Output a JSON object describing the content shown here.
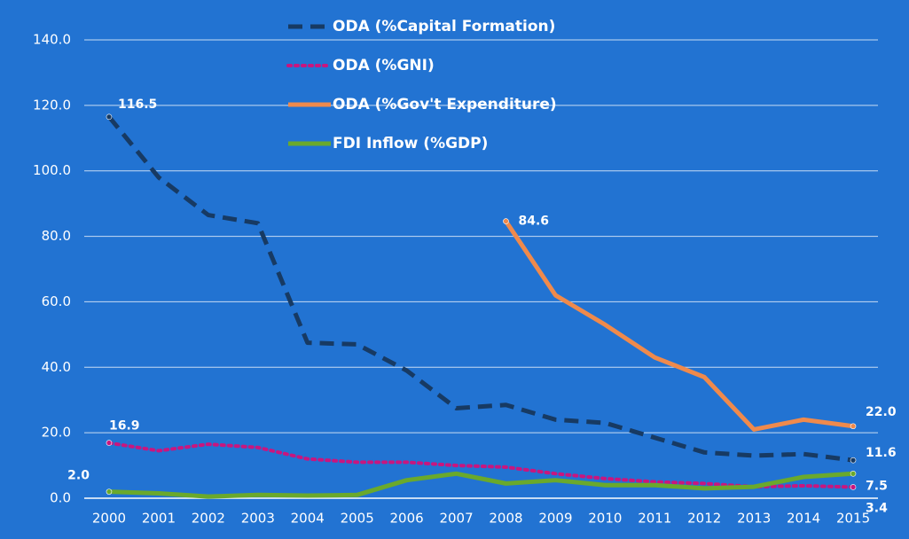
{
  "chart_data": {
    "type": "line",
    "categories": [
      "2000",
      "2001",
      "2002",
      "2003",
      "2004",
      "2005",
      "2006",
      "2007",
      "2008",
      "2009",
      "2010",
      "2011",
      "2012",
      "2013",
      "2014",
      "2015"
    ],
    "series": [
      {
        "name": "ODA (%Capital Formation)",
        "color": "#173a63",
        "dash": "dashed",
        "values": [
          116.5,
          98,
          86.5,
          84,
          47.5,
          47,
          39,
          27.5,
          28.5,
          24,
          23,
          18.5,
          14,
          13,
          13.5,
          11.6
        ],
        "value_labels": [
          "116.5",
          null,
          null,
          null,
          null,
          null,
          null,
          null,
          null,
          null,
          null,
          null,
          null,
          null,
          null,
          "11.6"
        ]
      },
      {
        "name": "ODA (%GNI)",
        "color": "#c8167f",
        "dash": "dotted",
        "values": [
          16.9,
          14.5,
          16.5,
          15.5,
          12,
          11,
          11,
          10,
          9.5,
          7.5,
          6,
          5,
          4.5,
          3.5,
          3.8,
          3.4
        ],
        "value_labels": [
          "16.9",
          null,
          null,
          null,
          null,
          null,
          null,
          null,
          null,
          null,
          null,
          null,
          null,
          null,
          null,
          "3.4"
        ]
      },
      {
        "name": "ODA (%Gov't Expenditure)",
        "color": "#ef8a4c",
        "dash": "solid",
        "values": [
          null,
          null,
          null,
          null,
          null,
          null,
          null,
          null,
          84.6,
          62,
          53,
          43,
          37,
          21,
          24,
          22.0
        ],
        "value_labels": [
          null,
          null,
          null,
          null,
          null,
          null,
          null,
          null,
          "84.6",
          null,
          null,
          null,
          null,
          null,
          null,
          "22.0"
        ]
      },
      {
        "name": "FDI Inflow (%GDP)",
        "color": "#6aa92c",
        "dash": "solid",
        "values": [
          2.0,
          1.5,
          0.5,
          1,
          0.8,
          1,
          5.5,
          7.5,
          4.5,
          5.5,
          4,
          4,
          3,
          3.5,
          6.5,
          7.5
        ],
        "value_labels": [
          "2.0",
          null,
          null,
          null,
          null,
          null,
          null,
          null,
          null,
          null,
          null,
          null,
          null,
          null,
          null,
          "7.5"
        ]
      }
    ],
    "ylim": [
      0,
      140
    ],
    "yticks": [
      {
        "value": 0,
        "label": "0.0"
      },
      {
        "value": 20,
        "label": "20.0"
      },
      {
        "value": 40,
        "label": "40.0"
      },
      {
        "value": 60,
        "label": "60.0"
      },
      {
        "value": 80,
        "label": "80.0"
      },
      {
        "value": 100,
        "label": "100.0"
      },
      {
        "value": 120,
        "label": "120.0"
      },
      {
        "value": 140,
        "label": "140.0"
      }
    ],
    "grid": true,
    "legend": "top"
  }
}
